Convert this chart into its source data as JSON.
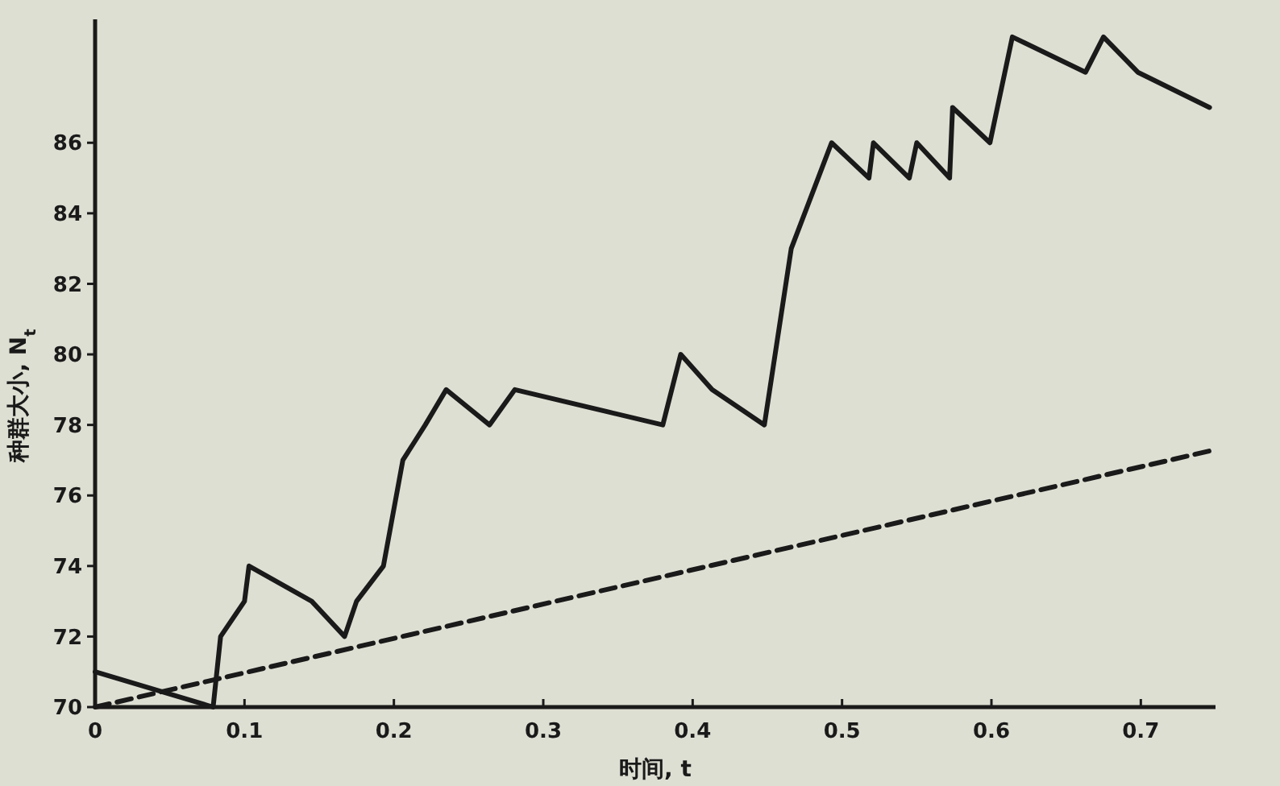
{
  "chart_data": {
    "type": "line",
    "xlabel": "时间, t",
    "ylabel": "种群大小, N$_{t}$",
    "xlim": [
      0,
      0.75
    ],
    "ylim": [
      70,
      89.5
    ],
    "xticks": [
      0,
      0.1,
      0.2,
      0.3,
      0.4,
      0.5,
      0.6,
      0.7
    ],
    "yticks": [
      70,
      72,
      74,
      76,
      78,
      80,
      82,
      84,
      86
    ],
    "marker": "none",
    "series": [
      {
        "color": "#1a1a1a",
        "line_style": "solid",
        "x": [
          0,
          0.079,
          0.084,
          0.1,
          0.103,
          0.145,
          0.167,
          0.175,
          0.193,
          0.206,
          0.221,
          0.235,
          0.264,
          0.281,
          0.38,
          0.392,
          0.413,
          0.448,
          0.466,
          0.493,
          0.518,
          0.521,
          0.545,
          0.55,
          0.572,
          0.574,
          0.599,
          0.604,
          0.614,
          0.663,
          0.675,
          0.698,
          0.746
        ],
        "values": [
          71,
          70,
          72,
          73,
          74,
          73,
          72,
          73,
          74,
          77,
          78,
          79,
          78,
          79,
          78,
          80,
          79,
          78,
          83,
          86,
          85,
          86,
          85,
          86,
          85,
          87,
          86,
          87,
          89,
          88,
          89,
          88,
          87
        ]
      },
      {
        "color": "#1a1a1a",
        "line_style": "dashed",
        "x": [
          0,
          0.75
        ],
        "values": [
          70,
          77.3
        ]
      }
    ]
  }
}
